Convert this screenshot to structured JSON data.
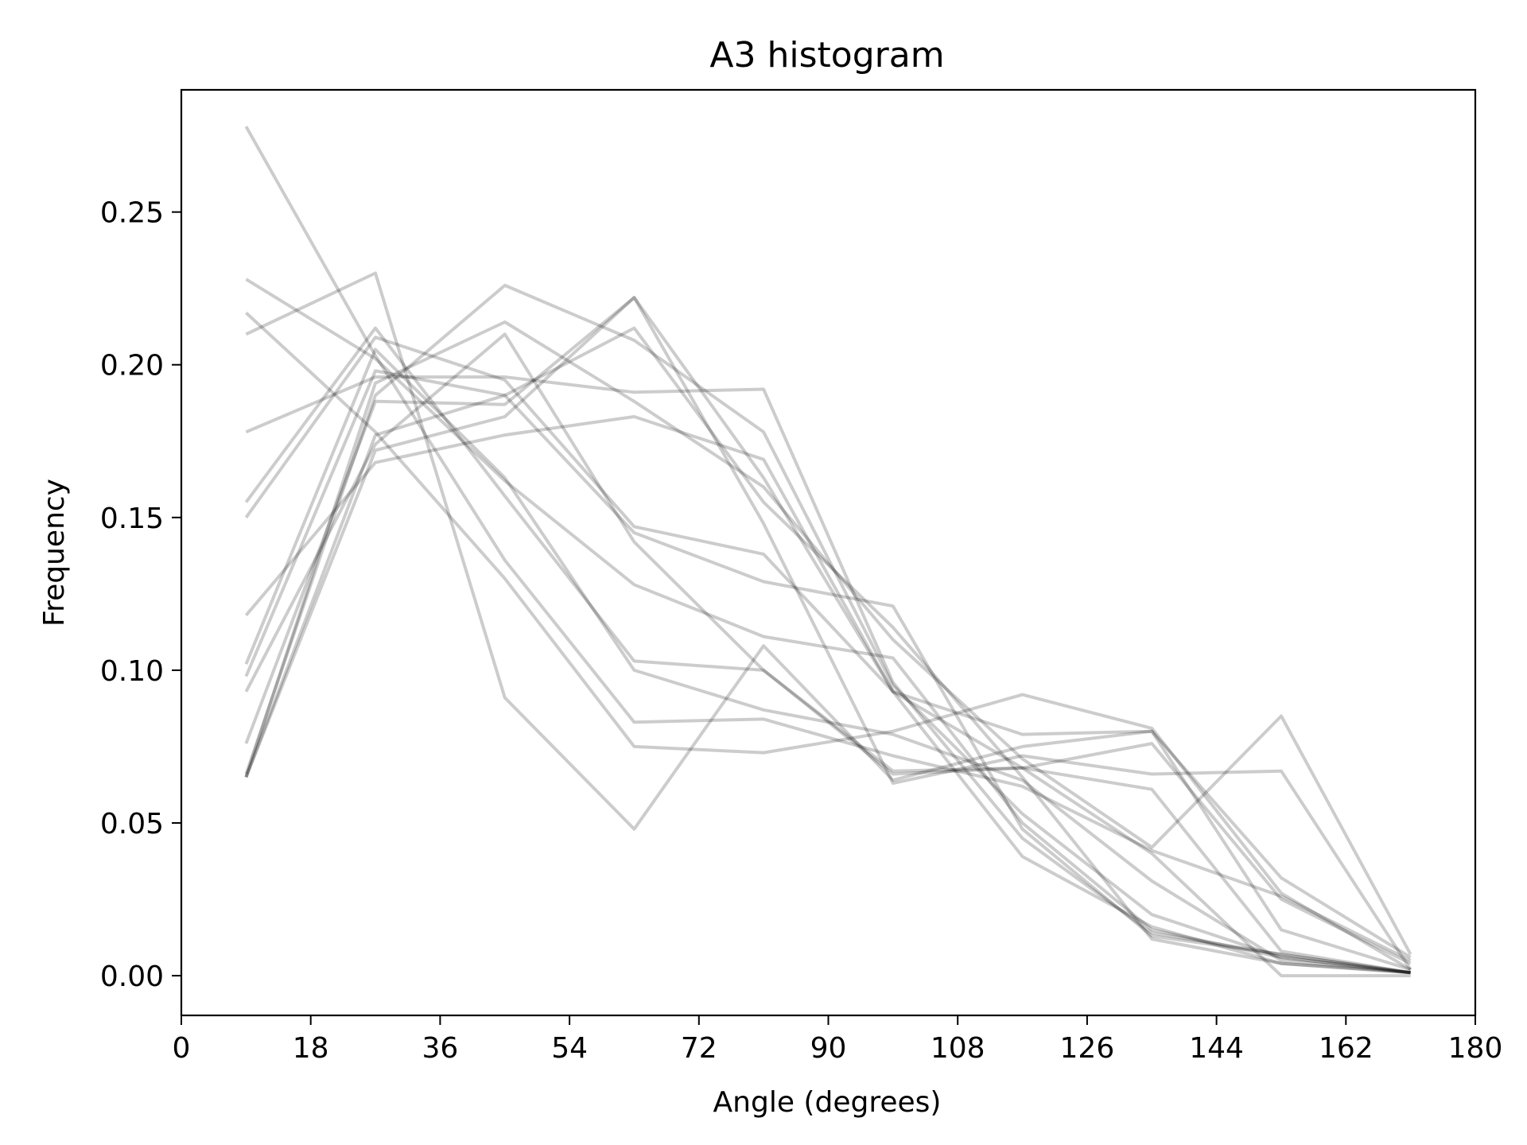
{
  "chart_data": {
    "type": "line",
    "title": "A3 histogram",
    "xlabel": "Angle (degrees)",
    "ylabel": "Frequency",
    "xlim": [
      0,
      180
    ],
    "ylim": [
      -0.013,
      0.29
    ],
    "xticks": [
      0,
      18,
      36,
      54,
      72,
      90,
      108,
      126,
      144,
      162,
      180
    ],
    "yticks": [
      0.0,
      0.05,
      0.1,
      0.15,
      0.2,
      0.25
    ],
    "xtick_labels": [
      "0",
      "18",
      "36",
      "54",
      "72",
      "90",
      "108",
      "126",
      "144",
      "162",
      "180"
    ],
    "ytick_labels": [
      "0.00",
      "0.05",
      "0.10",
      "0.15",
      "0.20",
      "0.25"
    ],
    "grid": false,
    "legend": "none",
    "line_color": "#000000",
    "line_opacity": 0.2,
    "x": [
      9,
      27,
      45,
      63,
      81,
      99,
      117,
      135,
      153,
      171
    ],
    "series": [
      {
        "values": [
          0.278,
          0.203,
          0.136,
          0.083,
          0.084,
          0.072,
          0.062,
          0.041,
          0.026,
          0.005
        ]
      },
      {
        "values": [
          0.228,
          0.202,
          0.162,
          0.128,
          0.111,
          0.104,
          0.05,
          0.015,
          0.006,
          0.001
        ]
      },
      {
        "values": [
          0.217,
          0.178,
          0.13,
          0.075,
          0.073,
          0.08,
          0.092,
          0.081,
          0.027,
          0.002
        ]
      },
      {
        "values": [
          0.21,
          0.23,
          0.091,
          0.048,
          0.108,
          0.064,
          0.075,
          0.08,
          0.032,
          0.006
        ]
      },
      {
        "values": [
          0.178,
          0.196,
          0.196,
          0.191,
          0.192,
          0.096,
          0.045,
          0.014,
          0.007,
          0.001
        ]
      },
      {
        "values": [
          0.155,
          0.212,
          0.157,
          0.103,
          0.1,
          0.067,
          0.068,
          0.076,
          0.025,
          0.004
        ]
      },
      {
        "values": [
          0.15,
          0.209,
          0.195,
          0.147,
          0.138,
          0.093,
          0.079,
          0.08,
          0.015,
          0.002
        ]
      },
      {
        "values": [
          0.118,
          0.168,
          0.177,
          0.183,
          0.169,
          0.093,
          0.039,
          0.016,
          0.004,
          0.001
        ]
      },
      {
        "values": [
          0.102,
          0.205,
          0.163,
          0.1,
          0.087,
          0.079,
          0.064,
          0.031,
          0.005,
          0.001
        ]
      },
      {
        "values": [
          0.098,
          0.198,
          0.19,
          0.145,
          0.129,
          0.121,
          0.048,
          0.013,
          0.007,
          0.001
        ]
      },
      {
        "values": [
          0.093,
          0.174,
          0.21,
          0.142,
          0.1,
          0.066,
          0.068,
          0.061,
          0.008,
          0.001
        ]
      },
      {
        "values": [
          0.076,
          0.188,
          0.187,
          0.222,
          0.148,
          0.063,
          0.072,
          0.066,
          0.067,
          0.002
        ]
      },
      {
        "values": [
          0.066,
          0.19,
          0.226,
          0.208,
          0.178,
          0.095,
          0.053,
          0.02,
          0.006,
          0.001
        ]
      },
      {
        "values": [
          0.065,
          0.172,
          0.183,
          0.222,
          0.163,
          0.093,
          0.068,
          0.04,
          0.0,
          0.0
        ]
      },
      {
        "values": [
          0.065,
          0.194,
          0.214,
          0.188,
          0.16,
          0.11,
          0.071,
          0.042,
          0.085,
          0.007
        ]
      },
      {
        "values": [
          0.065,
          0.177,
          0.19,
          0.212,
          0.155,
          0.114,
          0.065,
          0.012,
          0.004,
          0.001
        ]
      }
    ]
  }
}
